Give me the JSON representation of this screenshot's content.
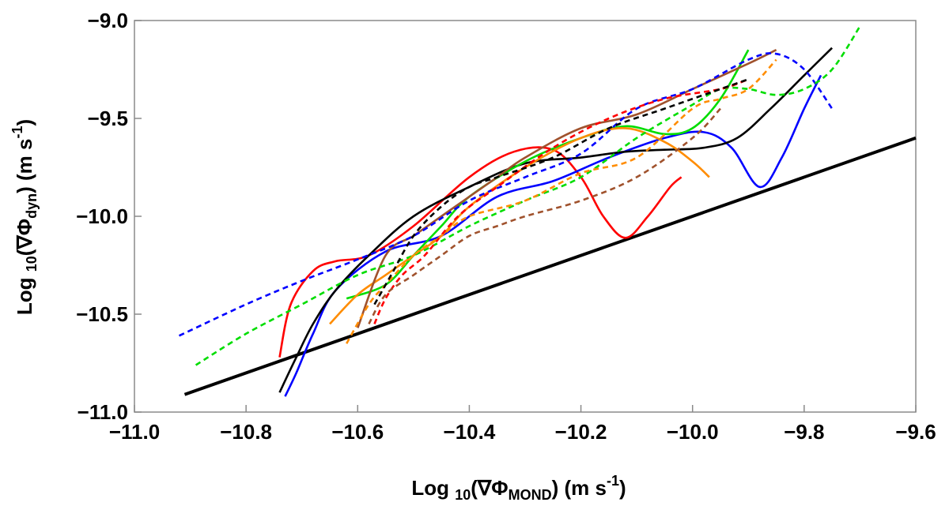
{
  "chart_data": {
    "type": "line",
    "xlabel": {
      "prefix": "Log ",
      "sub": "10",
      "mid": "(∇Φ",
      "sub2": "MOND",
      "post": ") (m s",
      "sup": "-1",
      "end": ")"
    },
    "ylabel": {
      "prefix": "Log ",
      "sub": "10",
      "mid": "(∇Φ",
      "sub2": "dyn",
      "post": ") (m s",
      "sup": "-1",
      "end": ")"
    },
    "xlim": [
      -11.0,
      -9.6
    ],
    "ylim": [
      -11.0,
      -9.0
    ],
    "xticks": [
      -11.0,
      -10.8,
      -10.6,
      -10.4,
      -10.2,
      -10.0,
      -9.8,
      -9.6
    ],
    "xtick_labels": [
      "−11.0",
      "−10.8",
      "−10.6",
      "−10.4",
      "−10.2",
      "−10.0",
      "−9.8",
      "−9.6"
    ],
    "yticks": [
      -9.0,
      -9.5,
      -10.0,
      -10.5,
      -11.0
    ],
    "ytick_labels": [
      "−9.0",
      "−9.5",
      "−10.0",
      "−10.5",
      "−11.0"
    ],
    "grid": false,
    "series": [
      {
        "color": "#000000",
        "dash": false,
        "width": 4,
        "x": [
          -10.91,
          -9.6
        ],
        "y": [
          -10.91,
          -9.6
        ]
      },
      {
        "color": "#ff0000",
        "dash": false,
        "width": 2.6,
        "x": [
          -10.74,
          -10.72,
          -10.68,
          -10.64,
          -10.58,
          -10.5,
          -10.4,
          -10.32,
          -10.25,
          -10.2,
          -10.16,
          -10.12,
          -10.08,
          -10.04,
          -10.02
        ],
        "y": [
          -10.72,
          -10.45,
          -10.28,
          -10.23,
          -10.2,
          -10.05,
          -9.8,
          -9.67,
          -9.66,
          -9.8,
          -10.0,
          -10.11,
          -10.0,
          -9.85,
          -9.8
        ]
      },
      {
        "color": "#0000ff",
        "dash": false,
        "width": 2.6,
        "x": [
          -10.73,
          -10.71,
          -10.68,
          -10.64,
          -10.55,
          -10.45,
          -10.35,
          -10.25,
          -10.15,
          -10.05,
          -9.98,
          -9.93,
          -9.88,
          -9.84,
          -9.8,
          -9.77
        ],
        "y": [
          -10.92,
          -10.8,
          -10.6,
          -10.38,
          -10.18,
          -10.1,
          -9.9,
          -9.82,
          -9.7,
          -9.6,
          -9.57,
          -9.65,
          -9.85,
          -9.7,
          -9.45,
          -9.28
        ]
      },
      {
        "color": "#000000",
        "dash": false,
        "width": 2.6,
        "x": [
          -10.74,
          -10.71,
          -10.68,
          -10.64,
          -10.58,
          -10.5,
          -10.4,
          -10.3,
          -10.2,
          -10.12,
          -10.05,
          -9.98,
          -9.92,
          -9.86,
          -9.8,
          -9.75
        ],
        "y": [
          -10.9,
          -10.72,
          -10.55,
          -10.38,
          -10.2,
          -10.0,
          -9.85,
          -9.73,
          -9.7,
          -9.67,
          -9.66,
          -9.65,
          -9.6,
          -9.45,
          -9.28,
          -9.14
        ]
      },
      {
        "color": "#00dd00",
        "dash": false,
        "width": 2.6,
        "x": [
          -10.62,
          -10.55,
          -10.5,
          -10.45,
          -10.4,
          -10.3,
          -10.2,
          -10.12,
          -10.05,
          -10.0,
          -9.95,
          -9.9
        ],
        "y": [
          -10.42,
          -10.35,
          -10.2,
          -10.05,
          -9.9,
          -9.72,
          -9.6,
          -9.54,
          -9.58,
          -9.55,
          -9.4,
          -9.15
        ]
      },
      {
        "color": "#ff8c00",
        "dash": false,
        "width": 2.6,
        "x": [
          -10.65,
          -10.6,
          -10.55,
          -10.5,
          -10.45,
          -10.4,
          -10.3,
          -10.2,
          -10.12,
          -10.05,
          -10.0,
          -9.97
        ],
        "y": [
          -10.55,
          -10.4,
          -10.3,
          -10.2,
          -10.1,
          -9.95,
          -9.75,
          -9.6,
          -9.55,
          -9.62,
          -9.72,
          -9.8
        ]
      },
      {
        "color": "#a0522d",
        "dash": false,
        "width": 2.6,
        "x": [
          -10.6,
          -10.55,
          -10.5,
          -10.45,
          -10.4,
          -10.35,
          -10.3,
          -10.2,
          -10.1,
          -10.0,
          -9.9,
          -9.85
        ],
        "y": [
          -10.57,
          -10.2,
          -10.1,
          -10.0,
          -9.9,
          -9.8,
          -9.7,
          -9.55,
          -9.48,
          -9.35,
          -9.22,
          -9.15
        ]
      },
      {
        "color": "#0000ff",
        "dash": true,
        "width": 2.6,
        "x": [
          -10.92,
          -10.8,
          -10.7,
          -10.6,
          -10.5,
          -10.4,
          -10.3,
          -10.2,
          -10.1,
          -10.0,
          -9.9,
          -9.85,
          -9.8,
          -9.75
        ],
        "y": [
          -10.61,
          -10.45,
          -10.33,
          -10.22,
          -10.1,
          -9.92,
          -9.8,
          -9.68,
          -9.45,
          -9.35,
          -9.2,
          -9.17,
          -9.25,
          -9.45
        ]
      },
      {
        "color": "#00dd00",
        "dash": true,
        "width": 2.6,
        "x": [
          -10.89,
          -10.8,
          -10.7,
          -10.6,
          -10.5,
          -10.4,
          -10.3,
          -10.2,
          -10.1,
          -10.0,
          -9.95,
          -9.9,
          -9.85,
          -9.8,
          -9.75,
          -9.7
        ],
        "y": [
          -10.76,
          -10.6,
          -10.45,
          -10.3,
          -10.2,
          -10.05,
          -9.92,
          -9.8,
          -9.6,
          -9.43,
          -9.35,
          -9.35,
          -9.38,
          -9.35,
          -9.25,
          -9.03
        ]
      },
      {
        "color": "#ff0000",
        "dash": true,
        "width": 2.6,
        "x": [
          -10.57,
          -10.55,
          -10.52,
          -10.48,
          -10.42,
          -10.35,
          -10.25,
          -10.15,
          -10.05,
          -9.95,
          -9.9
        ],
        "y": [
          -10.55,
          -10.42,
          -10.3,
          -10.2,
          -10.0,
          -9.85,
          -9.65,
          -9.5,
          -9.4,
          -9.35,
          -9.3
        ]
      },
      {
        "color": "#ff8c00",
        "dash": true,
        "width": 2.6,
        "x": [
          -10.62,
          -10.58,
          -10.55,
          -10.5,
          -10.45,
          -10.4,
          -10.3,
          -10.2,
          -10.1,
          -10.0,
          -9.95,
          -9.9,
          -9.85
        ],
        "y": [
          -10.65,
          -10.45,
          -10.35,
          -10.2,
          -10.1,
          -10.0,
          -9.92,
          -9.78,
          -9.7,
          -9.45,
          -9.4,
          -9.35,
          -9.2
        ]
      },
      {
        "color": "#a0522d",
        "dash": true,
        "width": 2.6,
        "x": [
          -10.58,
          -10.55,
          -10.5,
          -10.45,
          -10.4,
          -10.35,
          -10.3,
          -10.2,
          -10.1,
          -10.0,
          -9.95
        ],
        "y": [
          -10.55,
          -10.4,
          -10.3,
          -10.2,
          -10.1,
          -10.05,
          -10.0,
          -9.92,
          -9.8,
          -9.6,
          -9.45
        ]
      },
      {
        "color": "#000000",
        "dash": true,
        "width": 2.6,
        "x": [
          -10.57,
          -10.54,
          -10.5,
          -10.45,
          -10.4,
          -10.35,
          -10.25,
          -10.15,
          -10.05,
          -9.95,
          -9.9
        ],
        "y": [
          -10.45,
          -10.3,
          -10.1,
          -9.95,
          -9.85,
          -9.8,
          -9.7,
          -9.55,
          -9.45,
          -9.35,
          -9.3
        ]
      }
    ]
  }
}
